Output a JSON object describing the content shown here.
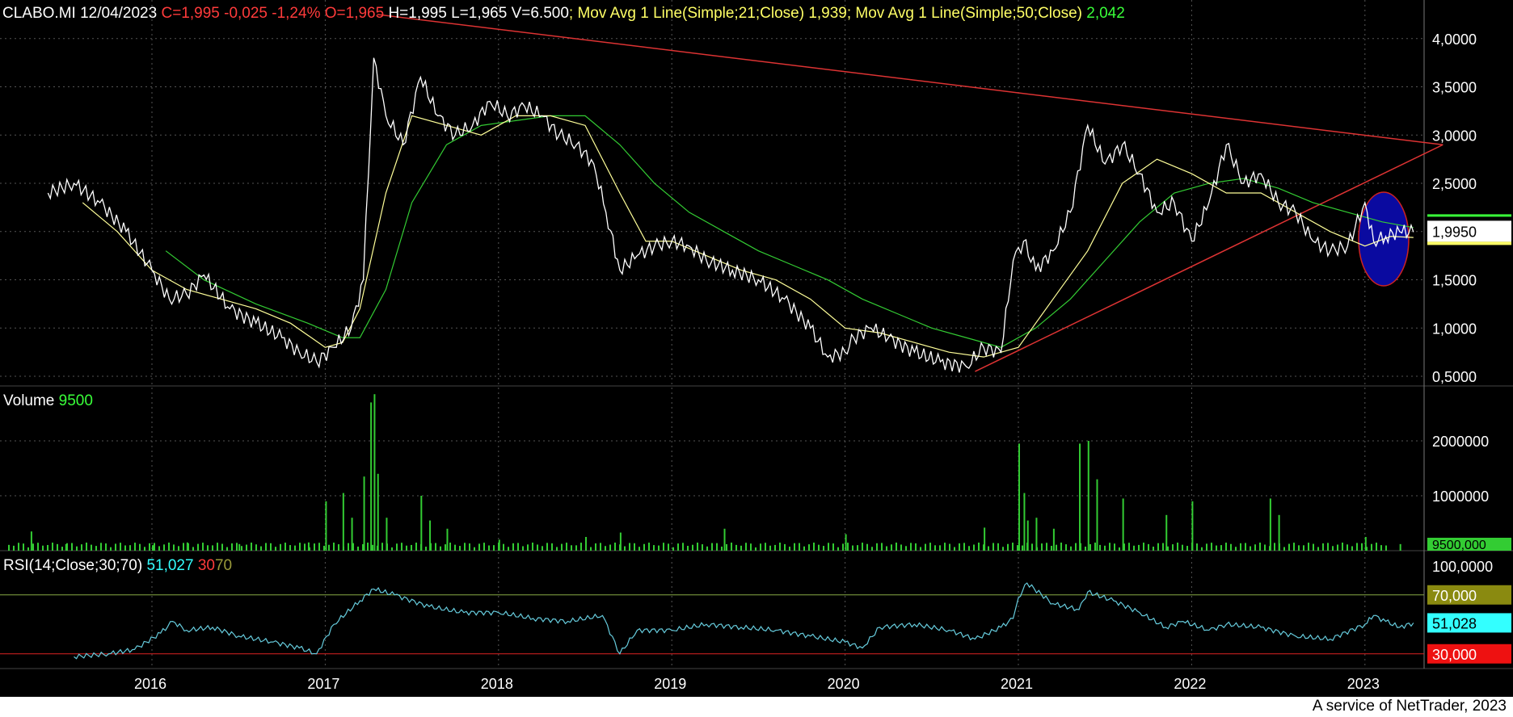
{
  "header": {
    "symbol": "CLABO.MI",
    "date": "12/04/2023",
    "quote": "C=1,995 -0,025 -1,24%",
    "open": "O=1,965",
    "hlv": "H=1,995 L=1,965 V=6.500",
    "ma21_label": "; Mov Avg 1 Line(Simple;21;Close)",
    "ma21_value": "1,939",
    "ma50_label": "; Mov Avg 1 Line(Simple;50;Close)",
    "ma50_value": "2,042"
  },
  "volume_header": {
    "label": "Volume",
    "value": "9500"
  },
  "rsi_header": {
    "label": "RSI(14;Close;30;70)",
    "value": "51,027",
    "low": "30",
    "high": "70"
  },
  "footer": "A service of NetTrader, 2023",
  "colors": {
    "price": "#ffffff",
    "ma21": "#ffff99",
    "ma50": "#33cc33",
    "trend": "#dd3333",
    "volume": "#33cc33",
    "rsi": "#66ccdd",
    "rsi70": "#88aa44",
    "rsi30": "#dd2222",
    "ellipse": "#0a0aa0"
  },
  "chart_data": [
    {
      "type": "line",
      "title": "CLABO.MI",
      "x_ticks": [
        "2016",
        "2017",
        "2018",
        "2019",
        "2020",
        "2021",
        "2022",
        "2023"
      ],
      "y_ticks": [
        "4,0000",
        "3,5000",
        "3,0000",
        "2,5000",
        "2,0000",
        "1,5000",
        "1,0000",
        "0,5000"
      ],
      "ylim": [
        0.4,
        4.4
      ],
      "last_price_label": "1,9950",
      "series": [
        {
          "name": "Close",
          "x": [
            2015.4,
            2015.55,
            2015.7,
            2015.85,
            2016.0,
            2016.1,
            2016.2,
            2016.3,
            2016.45,
            2016.6,
            2016.75,
            2016.85,
            2016.95,
            2017.05,
            2017.15,
            2017.22,
            2017.28,
            2017.35,
            2017.45,
            2017.55,
            2017.65,
            2017.75,
            2017.85,
            2017.95,
            2018.05,
            2018.15,
            2018.25,
            2018.35,
            2018.45,
            2018.55,
            2018.62,
            2018.7,
            2018.8,
            2018.9,
            2019.0,
            2019.1,
            2019.2,
            2019.35,
            2019.5,
            2019.65,
            2019.8,
            2019.9,
            2020.0,
            2020.05,
            2020.15,
            2020.25,
            2020.4,
            2020.55,
            2020.7,
            2020.8,
            2020.9,
            2020.97,
            2021.03,
            2021.1,
            2021.2,
            2021.3,
            2021.4,
            2021.5,
            2021.6,
            2021.7,
            2021.8,
            2021.9,
            2022.0,
            2022.1,
            2022.2,
            2022.3,
            2022.4,
            2022.5,
            2022.6,
            2022.7,
            2022.8,
            2022.9,
            2023.0,
            2023.05,
            2023.12,
            2023.2,
            2023.28
          ],
          "y": [
            2.4,
            2.5,
            2.3,
            2.0,
            1.6,
            1.3,
            1.35,
            1.55,
            1.2,
            1.05,
            0.9,
            0.75,
            0.65,
            0.8,
            1.0,
            1.5,
            3.8,
            3.2,
            2.9,
            3.6,
            3.2,
            3.0,
            3.1,
            3.35,
            3.2,
            3.3,
            3.2,
            3.0,
            2.9,
            2.7,
            2.2,
            1.6,
            1.75,
            1.85,
            1.9,
            1.85,
            1.7,
            1.6,
            1.5,
            1.3,
            1.0,
            0.7,
            0.75,
            0.9,
            1.0,
            0.9,
            0.75,
            0.65,
            0.6,
            0.8,
            0.75,
            1.7,
            1.9,
            1.6,
            1.8,
            2.2,
            3.1,
            2.7,
            2.9,
            2.6,
            2.2,
            2.3,
            1.9,
            2.3,
            2.9,
            2.5,
            2.6,
            2.3,
            2.2,
            1.9,
            1.8,
            1.85,
            2.3,
            1.9,
            1.95,
            2.0,
            1.995
          ]
        },
        {
          "name": "Mov Avg 1 Line(Simple;21;Close)",
          "x": [
            2015.6,
            2015.8,
            2016.0,
            2016.2,
            2016.4,
            2016.6,
            2016.8,
            2017.0,
            2017.1,
            2017.2,
            2017.35,
            2017.5,
            2017.7,
            2017.9,
            2018.1,
            2018.3,
            2018.5,
            2018.7,
            2018.85,
            2019.0,
            2019.2,
            2019.4,
            2019.6,
            2019.8,
            2020.0,
            2020.2,
            2020.4,
            2020.6,
            2020.8,
            2021.0,
            2021.2,
            2021.4,
            2021.6,
            2021.8,
            2022.0,
            2022.2,
            2022.4,
            2022.6,
            2022.8,
            2023.0,
            2023.15,
            2023.28
          ],
          "y": [
            2.3,
            2.0,
            1.6,
            1.4,
            1.3,
            1.2,
            1.05,
            0.8,
            0.85,
            1.2,
            2.4,
            3.2,
            3.1,
            3.0,
            3.2,
            3.2,
            3.1,
            2.4,
            1.9,
            1.9,
            1.75,
            1.6,
            1.5,
            1.3,
            1.0,
            0.95,
            0.85,
            0.75,
            0.7,
            0.8,
            1.3,
            1.8,
            2.5,
            2.75,
            2.6,
            2.4,
            2.4,
            2.2,
            2.0,
            1.85,
            1.95,
            1.939
          ]
        },
        {
          "name": "Mov Avg 1 Line(Simple;50;Close)",
          "x": [
            2016.08,
            2016.3,
            2016.6,
            2016.9,
            2017.1,
            2017.2,
            2017.35,
            2017.5,
            2017.7,
            2017.9,
            2018.1,
            2018.3,
            2018.5,
            2018.7,
            2018.9,
            2019.1,
            2019.3,
            2019.5,
            2019.7,
            2019.9,
            2020.1,
            2020.3,
            2020.5,
            2020.7,
            2020.9,
            2021.1,
            2021.3,
            2021.5,
            2021.7,
            2021.9,
            2022.1,
            2022.3,
            2022.5,
            2022.7,
            2022.9,
            2023.1,
            2023.28
          ],
          "y": [
            1.8,
            1.5,
            1.25,
            1.05,
            0.9,
            0.9,
            1.4,
            2.3,
            2.9,
            3.1,
            3.15,
            3.2,
            3.2,
            2.9,
            2.5,
            2.2,
            2.0,
            1.8,
            1.65,
            1.5,
            1.3,
            1.15,
            1.0,
            0.9,
            0.8,
            1.0,
            1.3,
            1.7,
            2.1,
            2.4,
            2.5,
            2.55,
            2.45,
            2.3,
            2.2,
            2.1,
            2.042
          ]
        }
      ],
      "trendlines": [
        {
          "x": [
            2017.3,
            2023.45
          ],
          "y": [
            4.25,
            2.9
          ]
        },
        {
          "x": [
            2020.75,
            2023.45
          ],
          "y": [
            0.55,
            2.9
          ]
        }
      ]
    },
    {
      "type": "bar",
      "title": "Volume",
      "y_ticks": [
        "2000000",
        "1000000"
      ],
      "ylim": [
        0,
        3000000
      ],
      "last_value_label": "9500,000",
      "x": [
        2015.3,
        2015.5,
        2016.0,
        2016.2,
        2016.5,
        2016.9,
        2017.0,
        2017.1,
        2017.15,
        2017.22,
        2017.26,
        2017.28,
        2017.3,
        2017.35,
        2017.55,
        2017.6,
        2017.7,
        2018.0,
        2018.5,
        2018.7,
        2019.3,
        2020.0,
        2020.8,
        2021.0,
        2021.03,
        2021.05,
        2021.1,
        2021.2,
        2021.35,
        2021.4,
        2021.45,
        2021.6,
        2021.85,
        2022.0,
        2022.45,
        2022.5,
        2023.0,
        2023.2
      ],
      "values": [
        350000,
        120000,
        100000,
        150000,
        120000,
        150000,
        900000,
        1050000,
        600000,
        1350000,
        2700000,
        2850000,
        1400000,
        600000,
        1000000,
        550000,
        400000,
        200000,
        250000,
        330000,
        400000,
        300000,
        420000,
        1950000,
        1050000,
        550000,
        600000,
        400000,
        1950000,
        2000000,
        1300000,
        950000,
        650000,
        900000,
        950000,
        650000,
        250000,
        120000
      ]
    },
    {
      "type": "line",
      "title": "RSI(14;Close;30;70)",
      "y_ticks": [
        "100,0000"
      ],
      "ylim": [
        20,
        100
      ],
      "levels": [
        {
          "label": "70,000",
          "value": 70
        },
        {
          "label": "30,000",
          "value": 30
        }
      ],
      "last_value_label": "51,028",
      "series": [
        {
          "name": "RSI(14;Close;30;70)",
          "x": [
            2015.55,
            2015.75,
            2015.9,
            2016.05,
            2016.12,
            2016.2,
            2016.35,
            2016.5,
            2016.7,
            2016.85,
            2016.95,
            2017.05,
            2017.2,
            2017.28,
            2017.4,
            2017.6,
            2017.8,
            2018.0,
            2018.2,
            2018.4,
            2018.6,
            2018.7,
            2018.8,
            2019.0,
            2019.2,
            2019.4,
            2019.6,
            2019.8,
            2020.0,
            2020.1,
            2020.2,
            2020.4,
            2020.6,
            2020.75,
            2020.9,
            2020.97,
            2021.0,
            2021.05,
            2021.2,
            2021.35,
            2021.4,
            2021.55,
            2021.7,
            2021.85,
            2021.95,
            2022.1,
            2022.2,
            2022.4,
            2022.6,
            2022.8,
            2023.0,
            2023.05,
            2023.12,
            2023.2,
            2023.28
          ],
          "y": [
            28,
            30,
            33,
            44,
            52,
            46,
            48,
            42,
            38,
            34,
            30,
            50,
            66,
            74,
            70,
            62,
            58,
            58,
            54,
            52,
            56,
            30,
            46,
            46,
            50,
            48,
            46,
            42,
            38,
            34,
            48,
            50,
            46,
            40,
            48,
            54,
            68,
            78,
            64,
            60,
            72,
            66,
            58,
            48,
            52,
            46,
            50,
            48,
            42,
            40,
            50,
            56,
            52,
            48,
            51
          ]
        }
      ]
    }
  ]
}
